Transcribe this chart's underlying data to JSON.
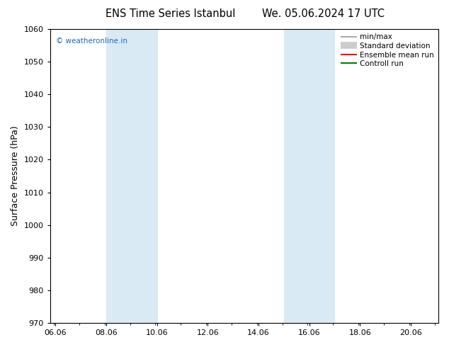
{
  "title_left": "ENS Time Series Istanbul",
  "title_right": "We. 05.06.2024 17 UTC",
  "ylabel": "Surface Pressure (hPa)",
  "ylim": [
    970,
    1060
  ],
  "yticks": [
    970,
    980,
    990,
    1000,
    1010,
    1020,
    1030,
    1040,
    1050,
    1060
  ],
  "xlim_start": 5.85,
  "xlim_end": 21.15,
  "xticks": [
    6.06,
    8.06,
    10.06,
    12.06,
    14.06,
    16.06,
    18.06,
    20.06
  ],
  "xtick_labels": [
    "06.06",
    "08.06",
    "10.06",
    "12.06",
    "14.06",
    "16.06",
    "18.06",
    "20.06"
  ],
  "shaded_bands": [
    {
      "x_start": 8.06,
      "x_end": 10.06
    },
    {
      "x_start": 15.06,
      "x_end": 17.06
    }
  ],
  "shade_color": "#daeaf5",
  "watermark_text": "© weatheronline.in",
  "watermark_color": "#1a6bb5",
  "legend_items": [
    {
      "label": "min/max",
      "color": "#999999",
      "lw": 1.2,
      "style": "-"
    },
    {
      "label": "Standard deviation",
      "color": "#cccccc",
      "lw": 7,
      "style": "-"
    },
    {
      "label": "Ensemble mean run",
      "color": "red",
      "lw": 1.5,
      "style": "-"
    },
    {
      "label": "Controll run",
      "color": "green",
      "lw": 1.5,
      "style": "-"
    }
  ],
  "background_color": "#ffffff",
  "title_fontsize": 10.5,
  "tick_fontsize": 8,
  "ylabel_fontsize": 9,
  "legend_fontsize": 7.5
}
